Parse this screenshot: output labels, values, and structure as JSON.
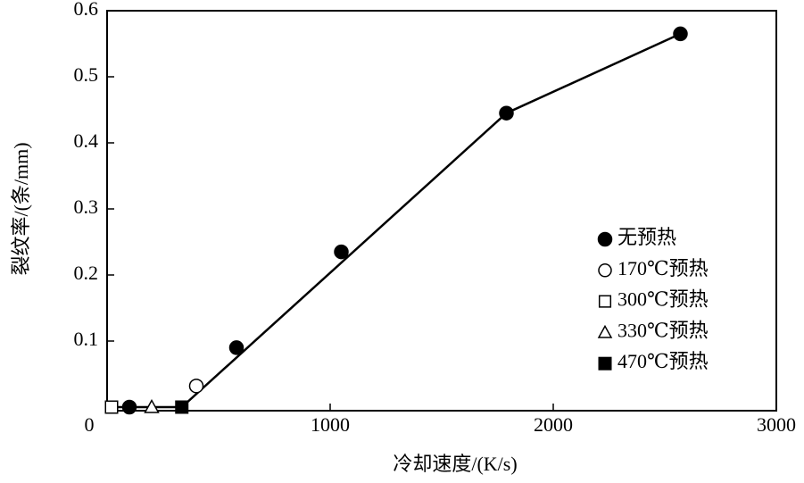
{
  "chart_data": {
    "type": "scatter",
    "x_label": "冷却速度/(K/s)",
    "y_label": "裂纹率/(条/mm)",
    "xlim": [
      0,
      3000
    ],
    "xticks": [
      0,
      1000,
      2000,
      3000
    ],
    "ylim": [
      0,
      0.6
    ],
    "yticks": [
      0.1,
      0.2,
      0.3,
      0.4,
      0.5,
      0.6
    ],
    "series": [
      {
        "name": "无预热",
        "marker": "circle",
        "filled": true,
        "x": [
          100,
          580,
          1050,
          1790,
          2570
        ],
        "values": [
          0,
          0.09,
          0.235,
          0.445,
          0.565
        ]
      },
      {
        "name": "170℃预热",
        "marker": "circle",
        "filled": false,
        "x": [
          400
        ],
        "values": [
          0.032
        ]
      },
      {
        "name": "300℃预热",
        "marker": "square",
        "filled": false,
        "x": [
          20
        ],
        "values": [
          0
        ]
      },
      {
        "name": "330℃预热",
        "marker": "triangle",
        "filled": false,
        "x": [
          200
        ],
        "values": [
          0
        ]
      },
      {
        "name": "470℃预热",
        "marker": "square",
        "filled": true,
        "x": [
          335
        ],
        "values": [
          0
        ]
      }
    ],
    "fit_line": {
      "x": [
        20,
        335,
        1790,
        2570
      ],
      "values": [
        0,
        0,
        0.445,
        0.565
      ]
    },
    "color": "#000000"
  }
}
